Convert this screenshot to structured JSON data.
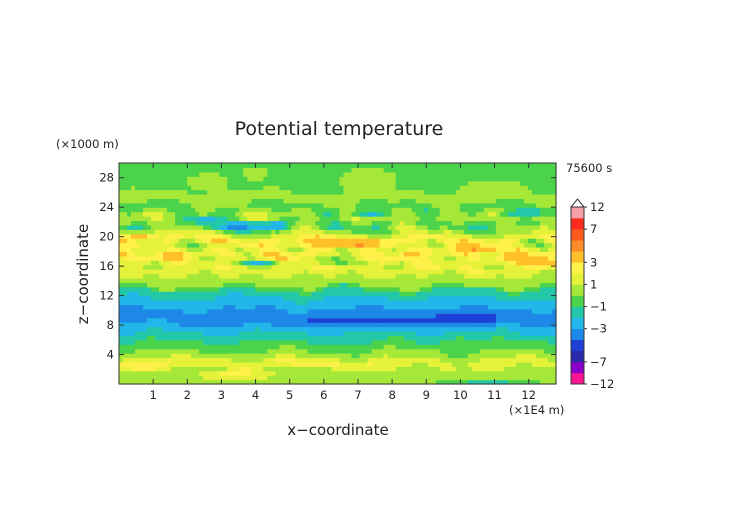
{
  "chart_data": {
    "type": "heatmap",
    "title": "Potential temperature",
    "xlabel": "x−coordinate",
    "ylabel": "z−coordinate",
    "x_unit": "(×1E4 m)",
    "y_unit": "(×1000 m)",
    "time_label": "75600 s",
    "xlim": [
      0,
      12.8
    ],
    "ylim": [
      0,
      30
    ],
    "x_ticks": [
      1,
      2,
      3,
      4,
      5,
      6,
      7,
      8,
      9,
      10,
      11,
      12
    ],
    "y_ticks": [
      4,
      8,
      12,
      16,
      20,
      24,
      28
    ],
    "colorbar": {
      "tick_labels": [
        "12",
        "7",
        "3",
        "1",
        "−1",
        "−3",
        "−7",
        "−12"
      ],
      "levels": [
        -12,
        -9,
        -7,
        -5,
        -4,
        -3,
        -2,
        -1,
        0,
        1,
        2,
        3,
        4,
        5,
        7,
        9,
        12
      ],
      "colors": [
        "#ff1493",
        "#8b00c8",
        "#2a2aa8",
        "#1f3fd6",
        "#1e88e8",
        "#22b7e8",
        "#22c8a8",
        "#4cd34c",
        "#a6e838",
        "#e6f23a",
        "#fff04a",
        "#ffc02a",
        "#ff8c28",
        "#ff5a1e",
        "#ff2a1e",
        "#f8a0a8"
      ],
      "extend_top": true
    },
    "bands": [
      {
        "z": 1.0,
        "value": 0.6
      },
      {
        "z": 2.0,
        "value": 0.8
      },
      {
        "z": 2.8,
        "value": 2.0
      },
      {
        "z": 3.8,
        "value": 0.7
      },
      {
        "z": 5.2,
        "value": -0.6
      },
      {
        "z": 6.5,
        "value": -1.6
      },
      {
        "z": 7.5,
        "value": -2.4
      },
      {
        "z": 8.6,
        "value": -3.1
      },
      {
        "z": 9.6,
        "value": -3.3
      },
      {
        "z": 10.5,
        "value": -2.9
      },
      {
        "z": 11.5,
        "value": -2.1
      },
      {
        "z": 12.6,
        "value": -1.2
      },
      {
        "z": 13.6,
        "value": 0.3
      },
      {
        "z": 14.6,
        "value": 0.9
      },
      {
        "z": 15.6,
        "value": 1.8
      },
      {
        "z": 16.5,
        "value": 1.2
      },
      {
        "z": 17.5,
        "value": 2.6
      },
      {
        "z": 18.6,
        "value": 1.0
      },
      {
        "z": 19.6,
        "value": 2.2
      },
      {
        "z": 20.6,
        "value": 0.6
      },
      {
        "z": 21.6,
        "value": -0.5
      },
      {
        "z": 22.8,
        "value": 0.8
      },
      {
        "z": 24.0,
        "value": -0.3
      },
      {
        "z": 25.5,
        "value": 0.4
      },
      {
        "z": 27.0,
        "value": -0.4
      },
      {
        "z": 29.0,
        "value": -0.5
      }
    ],
    "features": [
      {
        "x": 0.8,
        "z": 2.6,
        "rx": 0.7,
        "rz": 0.5,
        "value": 3.0
      },
      {
        "x": 3.4,
        "z": 1.3,
        "rx": 0.9,
        "rz": 0.5,
        "value": 2.6
      },
      {
        "x": 5.6,
        "z": 2.8,
        "rx": 0.7,
        "rz": 0.5,
        "value": 2.4
      },
      {
        "x": 4.6,
        "z": 21.6,
        "rx": 0.4,
        "rz": 0.5,
        "value": -3.4
      },
      {
        "x": 3.5,
        "z": 21.5,
        "rx": 0.8,
        "rz": 0.6,
        "value": -3.5
      },
      {
        "x": 2.6,
        "z": 22.5,
        "rx": 0.5,
        "rz": 0.5,
        "value": -2.6
      },
      {
        "x": 4.1,
        "z": 16.6,
        "rx": 0.5,
        "rz": 0.4,
        "value": -2.6
      },
      {
        "x": 7.4,
        "z": 23.2,
        "rx": 0.6,
        "rz": 0.5,
        "value": -2.2
      },
      {
        "x": 11.8,
        "z": 23.3,
        "rx": 0.7,
        "rz": 0.5,
        "value": -2.2
      },
      {
        "x": 6.5,
        "z": 19.2,
        "rx": 1.6,
        "rz": 0.6,
        "value": 4.4
      },
      {
        "x": 10.4,
        "z": 18.4,
        "rx": 0.9,
        "rz": 0.6,
        "value": 4.1
      },
      {
        "x": 12.2,
        "z": 16.8,
        "rx": 0.9,
        "rz": 0.7,
        "value": 3.8
      },
      {
        "x": 0.6,
        "z": 20.2,
        "rx": 0.7,
        "rz": 0.5,
        "value": 3.6
      },
      {
        "x": 7.2,
        "z": 8.6,
        "rx": 3.2,
        "rz": 0.7,
        "value": -4.3
      },
      {
        "x": 10.2,
        "z": 9.0,
        "rx": 1.2,
        "rz": 0.8,
        "value": -4.6
      },
      {
        "x": 0.1,
        "z": 10.2,
        "rx": 0.3,
        "rz": 0.4,
        "value": -4.5
      },
      {
        "x": 6.3,
        "z": 16.8,
        "rx": 0.6,
        "rz": 0.6,
        "value": -0.4
      },
      {
        "x": 7.3,
        "z": 27.8,
        "rx": 0.8,
        "rz": 1.6,
        "value": 0.9
      },
      {
        "x": 2.6,
        "z": 27.5,
        "rx": 0.6,
        "rz": 1.2,
        "value": 0.8
      },
      {
        "x": 4.0,
        "z": 28.6,
        "rx": 0.4,
        "rz": 1.0,
        "value": 0.7
      },
      {
        "x": 11.0,
        "z": 26.8,
        "rx": 0.9,
        "rz": 1.0,
        "value": 0.7
      },
      {
        "x": 10.0,
        "z": 4.5,
        "rx": 0.4,
        "rz": 2.2,
        "value": -0.2
      },
      {
        "x": 10.8,
        "z": 0.4,
        "rx": 1.4,
        "rz": 0.4,
        "value": -1.4
      }
    ]
  }
}
